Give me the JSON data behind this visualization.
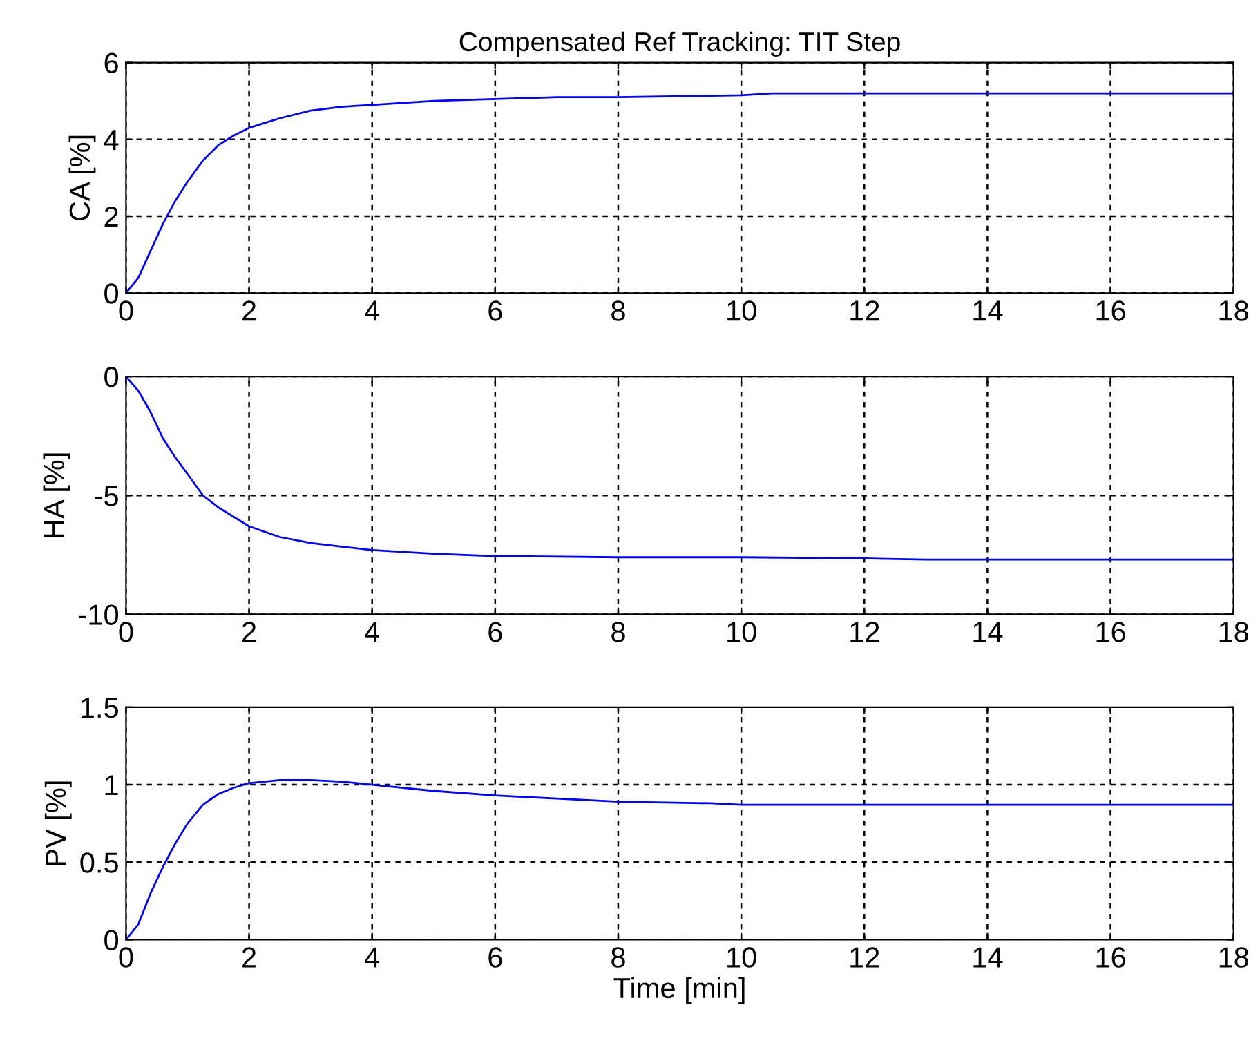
{
  "chart_data": [
    {
      "type": "line",
      "title": "Compensated Ref Tracking: TIT Step",
      "ylabel": "CA [%]",
      "xlim": [
        0,
        18
      ],
      "xticks": [
        0,
        2,
        4,
        6,
        8,
        10,
        12,
        14,
        16,
        18
      ],
      "ylim": [
        0,
        6
      ],
      "yticks": [
        0,
        2,
        4,
        6
      ],
      "grid": true,
      "series": [
        {
          "color": "#0000ff",
          "x": [
            0,
            0.2,
            0.4,
            0.6,
            0.8,
            1,
            1.25,
            1.5,
            1.75,
            2,
            2.5,
            3,
            3.5,
            4,
            5,
            6,
            7,
            8,
            10,
            10.5,
            12,
            14,
            16,
            18
          ],
          "values": [
            0,
            0.4,
            1.1,
            1.8,
            2.4,
            2.9,
            3.45,
            3.85,
            4.1,
            4.3,
            4.55,
            4.75,
            4.85,
            4.9,
            5.0,
            5.05,
            5.1,
            5.1,
            5.15,
            5.2,
            5.2,
            5.2,
            5.2,
            5.2
          ]
        }
      ]
    },
    {
      "type": "line",
      "ylabel": "HA [%]",
      "xlim": [
        0,
        18
      ],
      "xticks": [
        0,
        2,
        4,
        6,
        8,
        10,
        12,
        14,
        16,
        18
      ],
      "ylim": [
        -10,
        0
      ],
      "yticks": [
        -10,
        -5,
        0
      ],
      "grid": true,
      "series": [
        {
          "color": "#0000ff",
          "x": [
            0,
            0.2,
            0.4,
            0.6,
            0.8,
            1,
            1.25,
            1.5,
            2,
            2.5,
            3,
            3.5,
            4,
            5,
            6,
            8,
            10,
            12,
            13,
            14,
            16,
            18
          ],
          "values": [
            0,
            -0.6,
            -1.5,
            -2.6,
            -3.4,
            -4.1,
            -5.0,
            -5.5,
            -6.3,
            -6.75,
            -7.0,
            -7.15,
            -7.3,
            -7.45,
            -7.55,
            -7.6,
            -7.6,
            -7.65,
            -7.7,
            -7.7,
            -7.7,
            -7.7
          ]
        }
      ]
    },
    {
      "type": "line",
      "xlabel": "Time [min]",
      "ylabel": "PV [%]",
      "xlim": [
        0,
        18
      ],
      "xticks": [
        0,
        2,
        4,
        6,
        8,
        10,
        12,
        14,
        16,
        18
      ],
      "ylim": [
        0,
        1.5
      ],
      "yticks": [
        0,
        0.5,
        1,
        1.5
      ],
      "grid": true,
      "series": [
        {
          "color": "#0000ff",
          "x": [
            0,
            0.2,
            0.4,
            0.6,
            0.8,
            1,
            1.25,
            1.5,
            1.75,
            2,
            2.5,
            3,
            3.5,
            4,
            5,
            6,
            7,
            8,
            9.5,
            10,
            12,
            14,
            16,
            18
          ],
          "values": [
            0,
            0.1,
            0.3,
            0.47,
            0.62,
            0.75,
            0.87,
            0.94,
            0.98,
            1.01,
            1.03,
            1.03,
            1.02,
            1.0,
            0.96,
            0.93,
            0.91,
            0.89,
            0.88,
            0.87,
            0.87,
            0.87,
            0.87,
            0.87
          ]
        }
      ]
    }
  ]
}
